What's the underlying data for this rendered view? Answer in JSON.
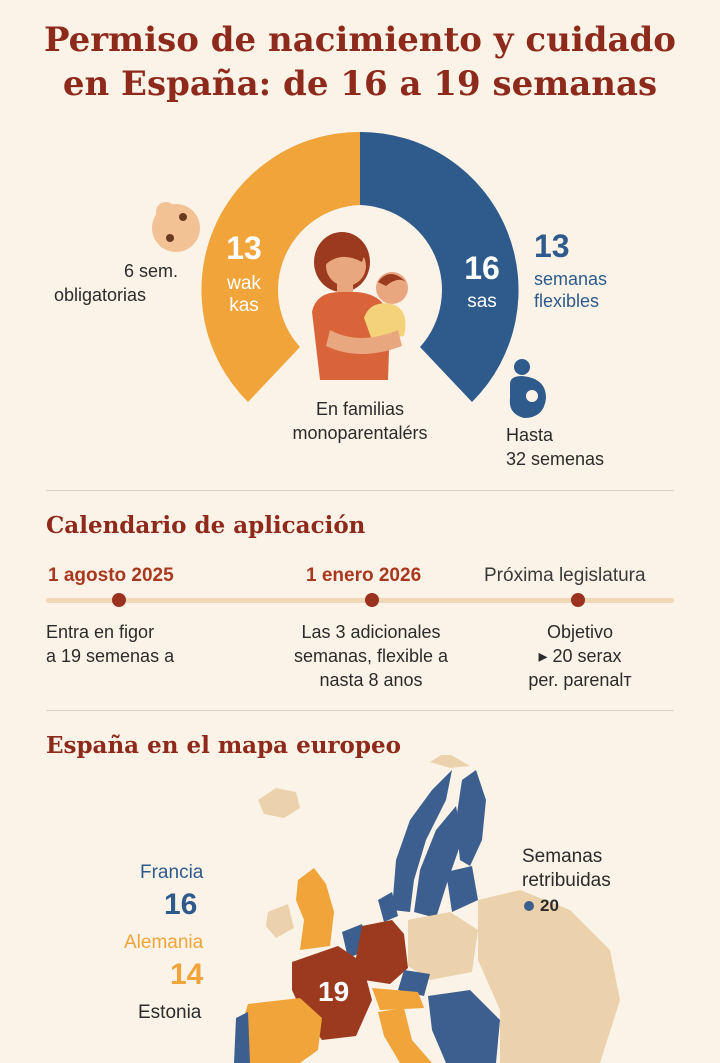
{
  "title": {
    "line1": "Permiso de nacimiento y cuidado",
    "line2": "en España: de 16 a 19 semanas"
  },
  "donut": {
    "left_number": "13",
    "left_label_1": "wak",
    "left_label_2": "kas",
    "right_number": "16",
    "right_label": "sas",
    "left_side_line1": "6 sem.",
    "left_side_line2": "obligatorias",
    "right_side_number": "13",
    "right_side_line1": "semanas",
    "right_side_line2": "flexibles",
    "center_line1": "En familias",
    "center_line2": "monoparentalérs",
    "bottom_right_line1": "Hasta",
    "bottom_right_line2": "32 semenas",
    "colors": {
      "orange": "#f0a43a",
      "blue": "#2e5a8c"
    }
  },
  "calendar": {
    "heading": "Calendario de aplicación",
    "events": [
      {
        "date": "1 agosto 2025",
        "desc1": "Entra en figor",
        "desc2": "a 19 semenas a",
        "desc3": ""
      },
      {
        "date": "1 enero 2026",
        "desc1": "Las 3 adicionales",
        "desc2": "semanas, flexible a",
        "desc3": "nasta 8 anos"
      },
      {
        "date": "Próxima legislatura",
        "desc1": "Objetivo",
        "desc2": "▸ 20 serax",
        "desc3": "per. parenalт"
      }
    ]
  },
  "map": {
    "heading": "España en el mapa europeo",
    "countries": [
      {
        "name": "Francia",
        "value": "16",
        "color": "#2e5a8c"
      },
      {
        "name": "Alemania",
        "value": "14",
        "color": "#f0a43a"
      },
      {
        "name": "Estonia",
        "value": "",
        "color": "#2b2b2b"
      }
    ],
    "spain_value": "19",
    "legend_line1": "Semanas",
    "legend_line2": "retribuidas",
    "legend_value": "20",
    "colors": {
      "blue": "#3d5f8f",
      "orange": "#f0a43a",
      "red": "#9b3a1e",
      "beige": "#ecd2ac"
    }
  }
}
